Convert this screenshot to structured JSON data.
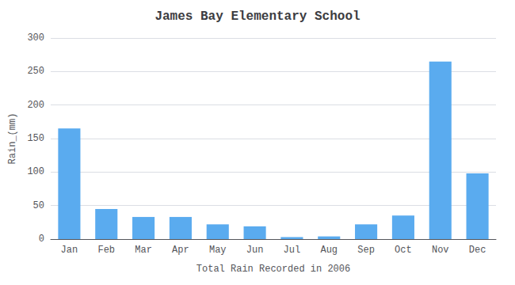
{
  "chart_data": {
    "type": "bar",
    "title": "James Bay Elementary School",
    "xlabel": "Total Rain Recorded in 2006",
    "ylabel": "Rain_(mm)",
    "categories": [
      "Jan",
      "Feb",
      "Mar",
      "Apr",
      "May",
      "Jun",
      "Jul",
      "Aug",
      "Sep",
      "Oct",
      "Nov",
      "Dec"
    ],
    "values": [
      165,
      45,
      33,
      33,
      22,
      19,
      3,
      4,
      22,
      35,
      265,
      98
    ],
    "color": "#5aabef",
    "ylim": [
      0,
      300
    ],
    "yticks": [
      0,
      50,
      100,
      150,
      200,
      250,
      300
    ],
    "grid": true
  }
}
